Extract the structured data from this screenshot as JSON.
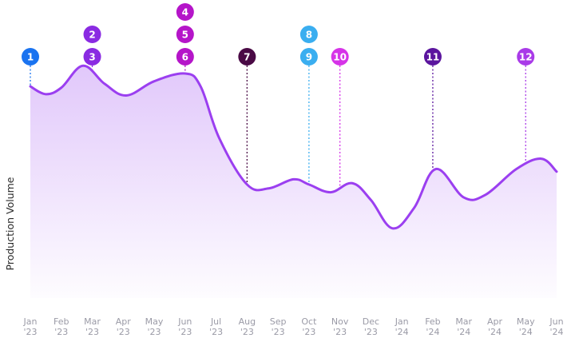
{
  "chart_data": {
    "type": "area",
    "ylabel": "Production Volume",
    "xlabel": "",
    "title": "",
    "x_months": [
      "Jan",
      "Feb",
      "Mar",
      "Apr",
      "May",
      "Jun",
      "Jul",
      "Aug",
      "Sep",
      "Oct",
      "Nov",
      "Dec",
      "Jan",
      "Feb",
      "Mar",
      "Apr",
      "May",
      "Jun"
    ],
    "x_years": [
      "'23",
      "'23",
      "'23",
      "'23",
      "'23",
      "'23",
      "'23",
      "'23",
      "'23",
      "'23",
      "'23",
      "'23",
      "'24",
      "'24",
      "'24",
      "'24",
      "'24",
      "'24"
    ],
    "ylim": [
      0,
      100
    ],
    "grid": false,
    "series": [
      {
        "values": [
          [
            0,
            82
          ],
          [
            0.5,
            79
          ],
          [
            1.0,
            81.5
          ],
          [
            1.7,
            90
          ],
          [
            2.4,
            83
          ],
          [
            3.1,
            78.5
          ],
          [
            4.0,
            84
          ],
          [
            5.0,
            87
          ],
          [
            5.5,
            82
          ],
          [
            6.1,
            62
          ],
          [
            7.0,
            44
          ],
          [
            7.7,
            42.5
          ],
          [
            8.5,
            46
          ],
          [
            9.0,
            44
          ],
          [
            9.7,
            41
          ],
          [
            10.4,
            44.5
          ],
          [
            11.0,
            38
          ],
          [
            11.7,
            27
          ],
          [
            12.4,
            35
          ],
          [
            13.1,
            50
          ],
          [
            14.0,
            39
          ],
          [
            14.7,
            40
          ],
          [
            15.7,
            50
          ],
          [
            16.5,
            54
          ],
          [
            17.0,
            49
          ]
        ]
      }
    ],
    "line_color": "#9b3ff0",
    "fill_color": "#c99bf7",
    "annotations": [
      {
        "id": "1",
        "x": 0,
        "color": "#1a73f0"
      },
      {
        "id": "2",
        "x": 2,
        "color": "#8a2be2"
      },
      {
        "id": "3",
        "x": 2,
        "color": "#8a2be2"
      },
      {
        "id": "4",
        "x": 5,
        "color": "#b515c9"
      },
      {
        "id": "5",
        "x": 5,
        "color": "#b515c9"
      },
      {
        "id": "6",
        "x": 5,
        "color": "#b515c9"
      },
      {
        "id": "7",
        "x": 7,
        "color": "#4a0a45"
      },
      {
        "id": "8",
        "x": 9,
        "color": "#3aaef0"
      },
      {
        "id": "9",
        "x": 9,
        "color": "#3aaef0"
      },
      {
        "id": "10",
        "x": 10,
        "color": "#d633e8"
      },
      {
        "id": "11",
        "x": 13,
        "color": "#5b159e"
      },
      {
        "id": "12",
        "x": 16,
        "color": "#a93ae8"
      }
    ]
  }
}
